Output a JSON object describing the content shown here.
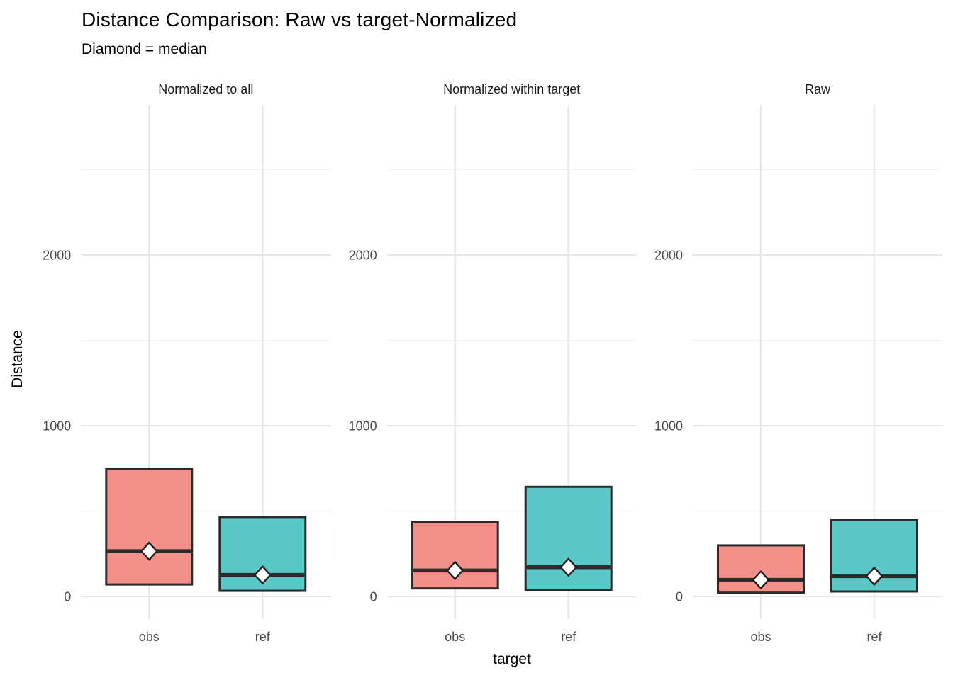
{
  "chart_data": {
    "type": "bar",
    "subtype": "faceted-crossbar-range-with-median-diamond",
    "title": "Distance Comparison: Raw vs target-Normalized",
    "subtitle": "Diamond = median",
    "xlabel": "target",
    "ylabel": "Distance",
    "categories": [
      "obs",
      "ref"
    ],
    "y_ticks": [
      0,
      1000,
      2000
    ],
    "y_tick_labels": [
      "0",
      "1000",
      "2000"
    ],
    "y_minor_ticks": [
      500,
      1500,
      2500
    ],
    "ylim": [
      -135,
      2875
    ],
    "grid": "on",
    "legend_position": "none",
    "facets": [
      {
        "label": "Normalized to all",
        "bars": [
          {
            "target": "obs",
            "ymin": 70,
            "median": 265,
            "ymax": 745
          },
          {
            "target": "ref",
            "ymin": 33,
            "median": 126,
            "ymax": 465
          }
        ]
      },
      {
        "label": "Normalized within target",
        "bars": [
          {
            "target": "obs",
            "ymin": 47,
            "median": 152,
            "ymax": 437
          },
          {
            "target": "ref",
            "ymin": 36,
            "median": 171,
            "ymax": 642
          }
        ]
      },
      {
        "label": "Raw",
        "bars": [
          {
            "target": "obs",
            "ymin": 22,
            "median": 97,
            "ymax": 299
          },
          {
            "target": "ref",
            "ymin": 29,
            "median": 119,
            "ymax": 448
          }
        ]
      }
    ],
    "colors": {
      "obs_fill": "#F4908A",
      "ref_fill": "#5AC8C8",
      "bar_outline": "#2B2B2B",
      "median_line": "#2B2B2B",
      "diamond_fill": "#FFFFFF",
      "diamond_outline": "#1F1F1F",
      "grid_major": "#E7E7E7",
      "grid_minor": "#F1F1F1",
      "axis_text": "#4D4D4D",
      "strip_text": "#1A1A1A"
    }
  }
}
